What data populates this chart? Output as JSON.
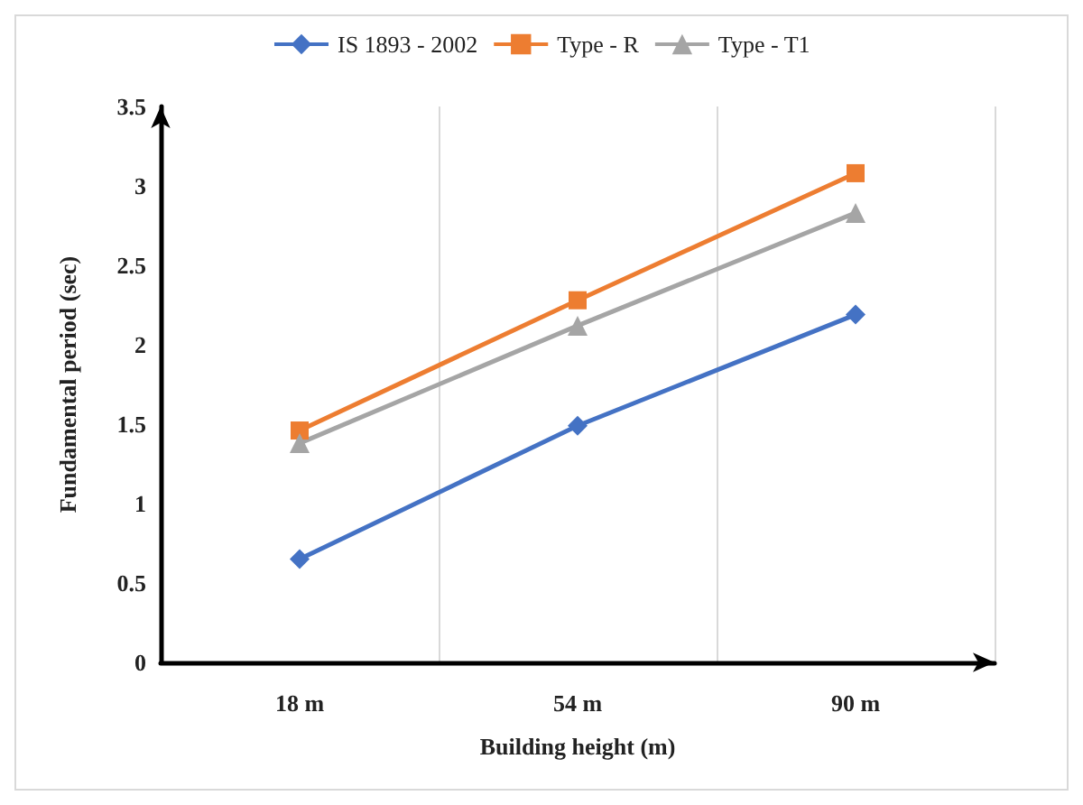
{
  "chart_data": {
    "type": "line",
    "xlabel": "Building height (m)",
    "ylabel": "Fundamental period (sec)",
    "categories": [
      "18 m",
      "54 m",
      "90 m"
    ],
    "series": [
      {
        "name": "IS 1893 - 2002",
        "color": "#4472c4",
        "marker": "diamond",
        "values": [
          0.65,
          1.49,
          2.19
        ]
      },
      {
        "name": "Type - R",
        "color": "#ed7d31",
        "marker": "square",
        "values": [
          1.46,
          2.28,
          3.08
        ]
      },
      {
        "name": "Type - T1",
        "color": "#a5a5a5",
        "marker": "triangle",
        "values": [
          1.38,
          2.12,
          2.83
        ]
      }
    ],
    "ylim": [
      0,
      3.5
    ],
    "yticks": [
      0,
      0.5,
      1,
      1.5,
      2,
      2.5,
      3,
      3.5
    ],
    "grid": "x",
    "legend": "top"
  }
}
